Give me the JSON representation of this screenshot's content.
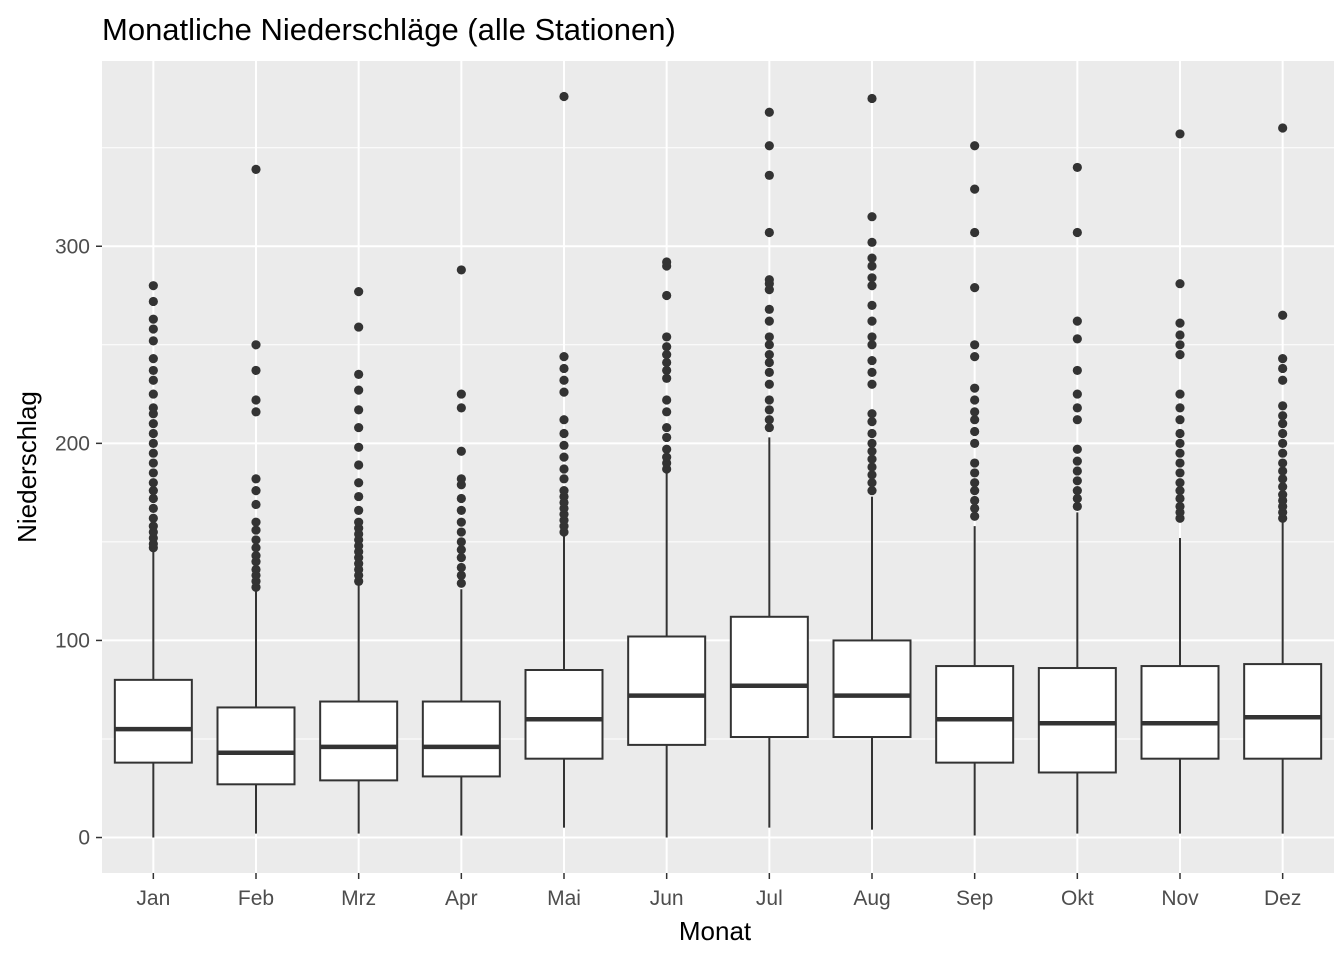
{
  "chart_data": {
    "type": "boxplot",
    "title": "Monatliche Niederschläge (alle Stationen)",
    "xlabel": "Monat",
    "ylabel": "Niederschlag",
    "categories": [
      "Jan",
      "Feb",
      "Mrz",
      "Apr",
      "Mai",
      "Jun",
      "Jul",
      "Aug",
      "Sep",
      "Okt",
      "Nov",
      "Dez"
    ],
    "y_ticks": [
      0,
      100,
      200,
      300
    ],
    "ylim": [
      -18,
      394
    ],
    "grid": true,
    "legend": "none",
    "boxes": [
      {
        "name": "Jan",
        "whisker_low": 0,
        "q1": 38,
        "median": 55,
        "q3": 80,
        "whisker_high": 145,
        "outliers": [
          147,
          149,
          152,
          155,
          158,
          162,
          167,
          172,
          176,
          180,
          185,
          190,
          195,
          200,
          205,
          210,
          215,
          218,
          225,
          232,
          237,
          243,
          252,
          258,
          263,
          272,
          280
        ]
      },
      {
        "name": "Feb",
        "whisker_low": 2,
        "q1": 27,
        "median": 43,
        "q3": 66,
        "whisker_high": 125,
        "outliers": [
          127,
          130,
          133,
          136,
          140,
          143,
          147,
          151,
          156,
          160,
          169,
          176,
          182,
          216,
          222,
          237,
          250,
          339
        ]
      },
      {
        "name": "Mrz",
        "whisker_low": 2,
        "q1": 29,
        "median": 46,
        "q3": 69,
        "whisker_high": 128,
        "outliers": [
          130,
          133,
          136,
          139,
          142,
          145,
          148,
          151,
          154,
          157,
          160,
          166,
          173,
          180,
          189,
          198,
          208,
          217,
          227,
          235,
          259,
          277
        ]
      },
      {
        "name": "Apr",
        "whisker_low": 1,
        "q1": 31,
        "median": 46,
        "q3": 69,
        "whisker_high": 126,
        "outliers": [
          129,
          133,
          137,
          142,
          146,
          150,
          155,
          160,
          166,
          172,
          179,
          182,
          196,
          218,
          225,
          288
        ]
      },
      {
        "name": "Mai",
        "whisker_low": 5,
        "q1": 40,
        "median": 60,
        "q3": 85,
        "whisker_high": 153,
        "outliers": [
          155,
          158,
          161,
          164,
          167,
          170,
          173,
          176,
          182,
          187,
          193,
          199,
          205,
          212,
          226,
          232,
          238,
          244,
          376
        ]
      },
      {
        "name": "Jun",
        "whisker_low": 0,
        "q1": 47,
        "median": 72,
        "q3": 102,
        "whisker_high": 185,
        "outliers": [
          187,
          190,
          193,
          197,
          203,
          208,
          216,
          222,
          233,
          237,
          241,
          245,
          249,
          254,
          275,
          290,
          292
        ]
      },
      {
        "name": "Jul",
        "whisker_low": 5,
        "q1": 51,
        "median": 77,
        "q3": 112,
        "whisker_high": 203,
        "outliers": [
          208,
          212,
          217,
          222,
          230,
          236,
          241,
          245,
          250,
          254,
          262,
          268,
          278,
          281,
          283,
          307,
          336,
          351,
          368
        ]
      },
      {
        "name": "Aug",
        "whisker_low": 4,
        "q1": 51,
        "median": 72,
        "q3": 100,
        "whisker_high": 173,
        "outliers": [
          176,
          180,
          184,
          188,
          192,
          196,
          200,
          205,
          211,
          215,
          230,
          236,
          242,
          250,
          254,
          262,
          270,
          280,
          284,
          290,
          294,
          302,
          315,
          375
        ]
      },
      {
        "name": "Sep",
        "whisker_low": 1,
        "q1": 38,
        "median": 60,
        "q3": 87,
        "whisker_high": 158,
        "outliers": [
          163,
          167,
          171,
          176,
          180,
          185,
          190,
          200,
          206,
          212,
          216,
          222,
          228,
          244,
          250,
          279,
          307,
          329,
          351
        ]
      },
      {
        "name": "Okt",
        "whisker_low": 2,
        "q1": 33,
        "median": 58,
        "q3": 86,
        "whisker_high": 165,
        "outliers": [
          168,
          172,
          176,
          181,
          186,
          191,
          197,
          212,
          218,
          225,
          237,
          253,
          262,
          307,
          340
        ]
      },
      {
        "name": "Nov",
        "whisker_low": 2,
        "q1": 40,
        "median": 58,
        "q3": 87,
        "whisker_high": 152,
        "outliers": [
          162,
          165,
          168,
          172,
          176,
          180,
          185,
          190,
          195,
          200,
          205,
          212,
          218,
          225,
          245,
          250,
          255,
          261,
          281,
          357
        ]
      },
      {
        "name": "Dez",
        "whisker_low": 2,
        "q1": 40,
        "median": 61,
        "q3": 88,
        "whisker_high": 160,
        "outliers": [
          162,
          165,
          168,
          171,
          174,
          178,
          182,
          186,
          190,
          195,
          200,
          205,
          210,
          214,
          219,
          232,
          238,
          243,
          265,
          360
        ]
      }
    ]
  }
}
